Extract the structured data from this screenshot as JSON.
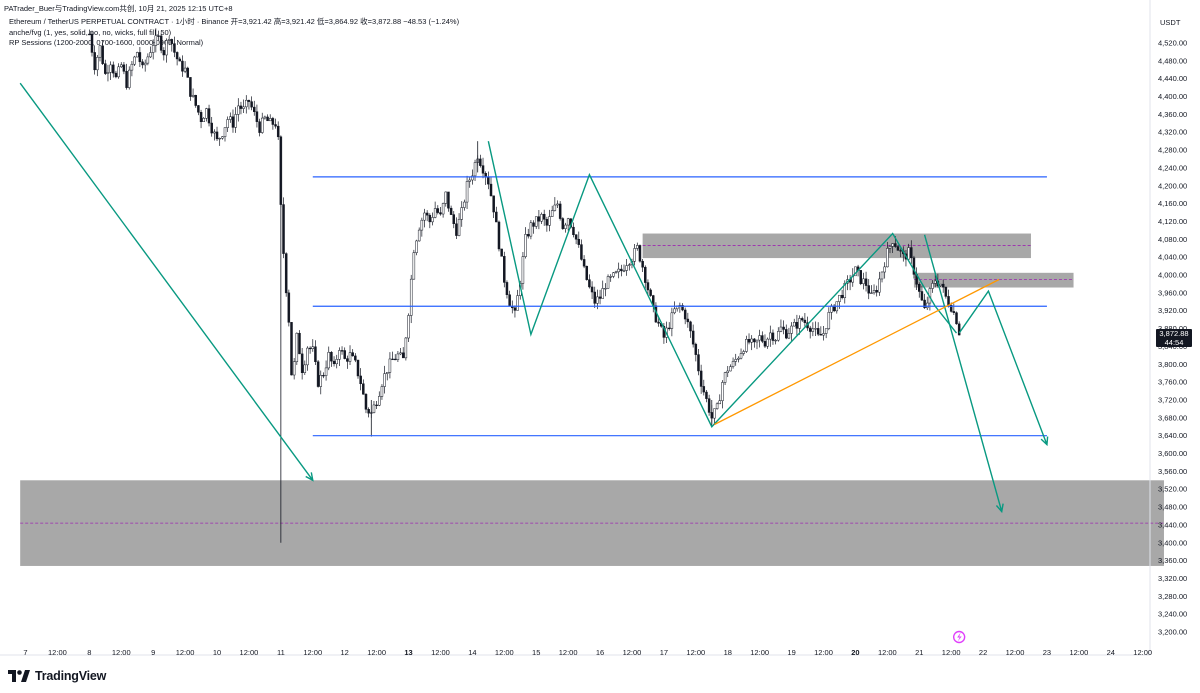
{
  "header": {
    "caption": "PATrader_Buer与TradingView.com共创, 10月 21, 2025 12:15 UTC+8"
  },
  "legend": {
    "title_line": "Ethereum / TetherUS PERPETUAL CONTRACT · 1小时 · Binance  开=3,921.42 高=3,921.42 低=3,864.92 收=3,872.88 −48.53 (−1.24%)",
    "indicator_1": "anche/fvg (1, yes, solid, no, no, wicks, full fill, 50)",
    "indicator_2": "RP Sessions (1200-2000, 0700-1600, 0000-0900, Normal)"
  },
  "currency_label": "USDT",
  "current_price": {
    "price": "3,872.88",
    "countdown": "44:54"
  },
  "brand": "TradingView",
  "colors": {
    "candle": "#131722",
    "horizontal_line": "#2962ff",
    "pattern_line": "#089981",
    "trendline": "#ff9800",
    "zone": "#9e9e9e",
    "zone_mid": "#9c27b0",
    "event_icon": "#e040fb"
  },
  "chart_data": {
    "type": "candlestick",
    "symbol": "ETHUSDT.P",
    "timeframe": "1h",
    "ylim": [
      3160,
      4560
    ],
    "y_ticks": [
      3200,
      3240,
      3280,
      3320,
      3360,
      3400,
      3440,
      3480,
      3520,
      3560,
      3600,
      3640,
      3680,
      3720,
      3760,
      3800,
      3840,
      3880,
      3920,
      3960,
      4000,
      4040,
      4080,
      4120,
      4160,
      4200,
      4240,
      4280,
      4320,
      4360,
      4400,
      4440,
      4480,
      4520
    ],
    "x_labels": [
      {
        "t": 0,
        "label": "7"
      },
      {
        "t": 12,
        "label": "12:00"
      },
      {
        "t": 24,
        "label": "8"
      },
      {
        "t": 36,
        "label": "12:00"
      },
      {
        "t": 48,
        "label": "9"
      },
      {
        "t": 60,
        "label": "12:00"
      },
      {
        "t": 72,
        "label": "10"
      },
      {
        "t": 84,
        "label": "12:00"
      },
      {
        "t": 96,
        "label": "11"
      },
      {
        "t": 108,
        "label": "12:00"
      },
      {
        "t": 120,
        "label": "12"
      },
      {
        "t": 132,
        "label": "12:00"
      },
      {
        "t": 144,
        "label": "13",
        "bold": true
      },
      {
        "t": 156,
        "label": "12:00"
      },
      {
        "t": 168,
        "label": "14"
      },
      {
        "t": 180,
        "label": "12:00"
      },
      {
        "t": 192,
        "label": "15"
      },
      {
        "t": 204,
        "label": "12:00"
      },
      {
        "t": 216,
        "label": "16"
      },
      {
        "t": 228,
        "label": "12:00"
      },
      {
        "t": 240,
        "label": "17"
      },
      {
        "t": 252,
        "label": "12:00"
      },
      {
        "t": 264,
        "label": "18"
      },
      {
        "t": 276,
        "label": "12:00"
      },
      {
        "t": 288,
        "label": "19"
      },
      {
        "t": 300,
        "label": "12:00"
      },
      {
        "t": 312,
        "label": "20",
        "bold": true
      },
      {
        "t": 324,
        "label": "12:00"
      },
      {
        "t": 336,
        "label": "21"
      },
      {
        "t": 348,
        "label": "12:00"
      },
      {
        "t": 360,
        "label": "22"
      },
      {
        "t": 372,
        "label": "12:00"
      },
      {
        "t": 384,
        "label": "23"
      },
      {
        "t": 396,
        "label": "12:00"
      },
      {
        "t": 408,
        "label": "24"
      },
      {
        "t": 420,
        "label": "12:00"
      }
    ],
    "price_path": [
      [
        24,
        4540
      ],
      [
        26,
        4470
      ],
      [
        28,
        4510
      ],
      [
        30,
        4450
      ],
      [
        32,
        4480
      ],
      [
        34,
        4440
      ],
      [
        36,
        4470
      ],
      [
        38,
        4430
      ],
      [
        40,
        4470
      ],
      [
        42,
        4500
      ],
      [
        44,
        4460
      ],
      [
        46,
        4490
      ],
      [
        48,
        4520
      ],
      [
        50,
        4530
      ],
      [
        52,
        4500
      ],
      [
        54,
        4540
      ],
      [
        56,
        4500
      ],
      [
        58,
        4470
      ],
      [
        60,
        4460
      ],
      [
        62,
        4410
      ],
      [
        64,
        4380
      ],
      [
        66,
        4350
      ],
      [
        68,
        4370
      ],
      [
        70,
        4330
      ],
      [
        72,
        4300
      ],
      [
        74,
        4320
      ],
      [
        76,
        4350
      ],
      [
        78,
        4340
      ],
      [
        80,
        4380
      ],
      [
        82,
        4370
      ],
      [
        84,
        4390
      ],
      [
        86,
        4360
      ],
      [
        88,
        4330
      ],
      [
        90,
        4350
      ],
      [
        92,
        4340
      ],
      [
        94,
        4340
      ],
      [
        95,
        4300
      ],
      [
        96,
        4150
      ],
      [
        97,
        4050
      ],
      [
        98,
        3970
      ],
      [
        99,
        3900
      ],
      [
        100,
        3780
      ],
      [
        101,
        3800
      ],
      [
        102,
        3860
      ],
      [
        103,
        3830
      ],
      [
        104,
        3790
      ],
      [
        105,
        3810
      ],
      [
        106,
        3840
      ],
      [
        108,
        3830
      ],
      [
        110,
        3760
      ],
      [
        112,
        3780
      ],
      [
        114,
        3820
      ],
      [
        116,
        3790
      ],
      [
        118,
        3840
      ],
      [
        120,
        3810
      ],
      [
        122,
        3820
      ],
      [
        124,
        3800
      ],
      [
        126,
        3760
      ],
      [
        128,
        3700
      ],
      [
        130,
        3690
      ],
      [
        132,
        3720
      ],
      [
        134,
        3760
      ],
      [
        136,
        3790
      ],
      [
        138,
        3810
      ],
      [
        140,
        3820
      ],
      [
        142,
        3810
      ],
      [
        144,
        3920
      ],
      [
        146,
        4060
      ],
      [
        148,
        4110
      ],
      [
        150,
        4140
      ],
      [
        152,
        4120
      ],
      [
        154,
        4150
      ],
      [
        156,
        4130
      ],
      [
        158,
        4180
      ],
      [
        160,
        4130
      ],
      [
        162,
        4100
      ],
      [
        164,
        4140
      ],
      [
        166,
        4200
      ],
      [
        168,
        4230
      ],
      [
        170,
        4270
      ],
      [
        172,
        4240
      ],
      [
        174,
        4210
      ],
      [
        176,
        4150
      ],
      [
        178,
        4070
      ],
      [
        180,
        3990
      ],
      [
        182,
        3940
      ],
      [
        184,
        3910
      ],
      [
        186,
        3990
      ],
      [
        188,
        4080
      ],
      [
        190,
        4110
      ],
      [
        192,
        4120
      ],
      [
        194,
        4130
      ],
      [
        196,
        4110
      ],
      [
        198,
        4140
      ],
      [
        200,
        4160
      ],
      [
        202,
        4110
      ],
      [
        204,
        4130
      ],
      [
        206,
        4100
      ],
      [
        208,
        4060
      ],
      [
        210,
        4010
      ],
      [
        212,
        3970
      ],
      [
        214,
        3940
      ],
      [
        216,
        3950
      ],
      [
        218,
        3980
      ],
      [
        220,
        3990
      ],
      [
        222,
        4000
      ],
      [
        224,
        4010
      ],
      [
        226,
        4030
      ],
      [
        228,
        4040
      ],
      [
        230,
        4060
      ],
      [
        232,
        4020
      ],
      [
        234,
        3970
      ],
      [
        236,
        3920
      ],
      [
        238,
        3890
      ],
      [
        240,
        3860
      ],
      [
        242,
        3890
      ],
      [
        244,
        3920
      ],
      [
        246,
        3930
      ],
      [
        248,
        3910
      ],
      [
        250,
        3870
      ],
      [
        252,
        3820
      ],
      [
        254,
        3760
      ],
      [
        256,
        3720
      ],
      [
        258,
        3680
      ],
      [
        260,
        3700
      ],
      [
        262,
        3760
      ],
      [
        264,
        3790
      ],
      [
        266,
        3800
      ],
      [
        268,
        3820
      ],
      [
        270,
        3840
      ],
      [
        272,
        3850
      ],
      [
        274,
        3840
      ],
      [
        276,
        3860
      ],
      [
        278,
        3850
      ],
      [
        280,
        3870
      ],
      [
        282,
        3860
      ],
      [
        284,
        3880
      ],
      [
        286,
        3870
      ],
      [
        288,
        3880
      ],
      [
        290,
        3890
      ],
      [
        292,
        3900
      ],
      [
        294,
        3890
      ],
      [
        296,
        3880
      ],
      [
        298,
        3860
      ],
      [
        300,
        3870
      ],
      [
        302,
        3910
      ],
      [
        304,
        3930
      ],
      [
        306,
        3950
      ],
      [
        308,
        3970
      ],
      [
        310,
        3990
      ],
      [
        312,
        4010
      ],
      [
        314,
        3990
      ],
      [
        316,
        3980
      ],
      [
        318,
        3950
      ],
      [
        320,
        3970
      ],
      [
        322,
        4010
      ],
      [
        324,
        4050
      ],
      [
        326,
        4080
      ],
      [
        328,
        4060
      ],
      [
        330,
        4040
      ],
      [
        332,
        4050
      ],
      [
        334,
        4010
      ],
      [
        336,
        3960
      ],
      [
        338,
        3920
      ],
      [
        340,
        3960
      ],
      [
        342,
        3990
      ],
      [
        344,
        3980
      ],
      [
        346,
        3950
      ],
      [
        348,
        3930
      ],
      [
        350,
        3900
      ],
      [
        351,
        3873
      ]
    ],
    "extreme_wicks": [
      {
        "t": 96,
        "low": 3400,
        "high": 4180
      },
      {
        "t": 130,
        "low": 3638,
        "high": 3720
      },
      {
        "t": 170,
        "low": 4230,
        "high": 4300
      },
      {
        "t": 258,
        "low": 3660,
        "high": 3720
      }
    ],
    "horizontal_levels": [
      {
        "price": 4220,
        "t_start": 108,
        "t_end": 384
      },
      {
        "price": 3930,
        "t_start": 108,
        "t_end": 384
      },
      {
        "price": 3640,
        "t_start": 108,
        "t_end": 384
      }
    ],
    "zones": [
      {
        "top": 3540,
        "bottom": 3348,
        "t_start": -2,
        "t_end": 428,
        "mid": 3444
      },
      {
        "top": 4093,
        "bottom": 4038,
        "t_start": 232,
        "t_end": 378,
        "mid": 4066
      },
      {
        "top": 4005,
        "bottom": 3972,
        "t_start": 334,
        "t_end": 394,
        "mid": 3990
      }
    ],
    "pattern_lines": [
      {
        "points": [
          [
            -2,
            4430
          ],
          [
            108,
            3540
          ]
        ],
        "arrow": true
      },
      {
        "points": [
          [
            174,
            4300
          ],
          [
            190,
            3867
          ],
          [
            212,
            4225
          ],
          [
            258,
            3660
          ],
          [
            326,
            4093
          ],
          [
            342,
            3930
          ],
          [
            350,
            3870
          ]
        ],
        "arrow": false
      },
      {
        "points": [
          [
            338,
            4090
          ],
          [
            367,
            3470
          ]
        ],
        "arrow": true
      },
      {
        "points": [
          [
            351,
            3870
          ],
          [
            362,
            3964
          ],
          [
            384,
            3620
          ]
        ],
        "arrow": true
      }
    ],
    "trendline": {
      "points": [
        [
          259,
          3665
        ],
        [
          366,
          3990
        ]
      ]
    },
    "event_icon": {
      "t": 351
    }
  }
}
